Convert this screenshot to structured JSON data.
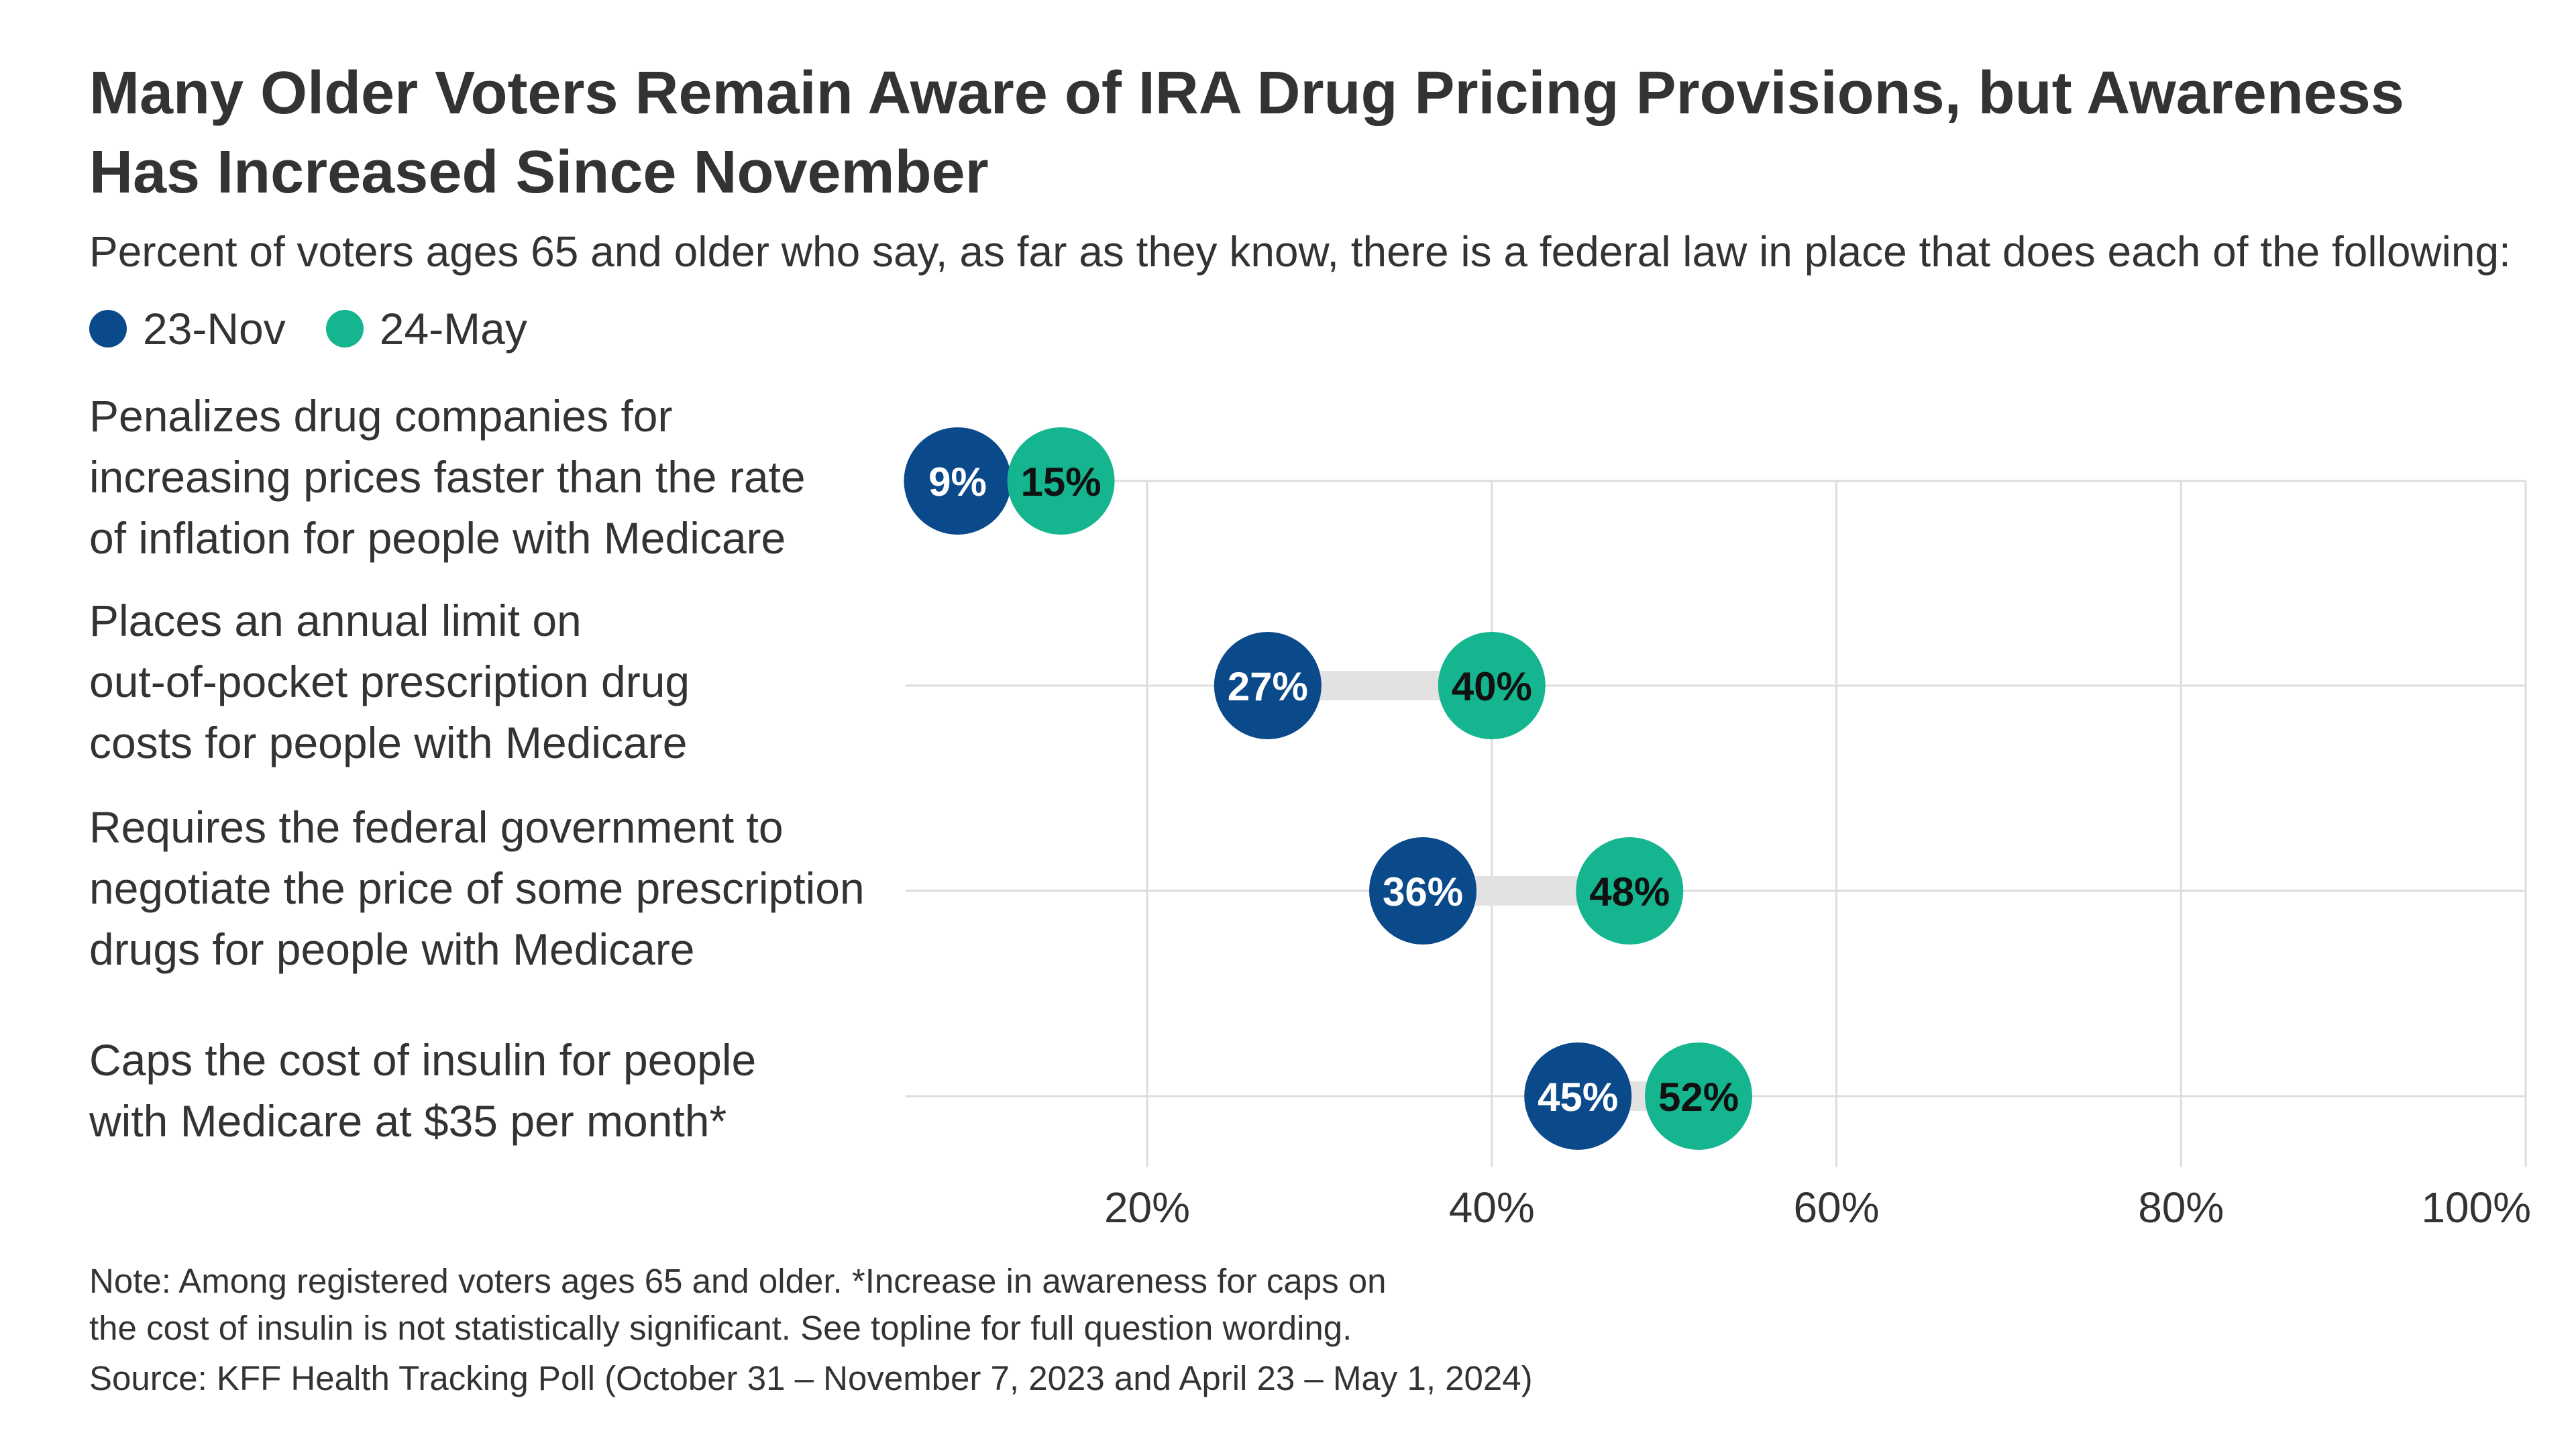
{
  "chart_data": {
    "type": "dumbbell",
    "title": "Many Older Voters Remain Aware of IRA Drug Pricing Provisions, but Awareness Has Increased Since November",
    "subtitle": "Percent of voters ages 65 and older who say, as far as they know, there is a federal law in place that does each of the following:",
    "series": [
      {
        "name": "23-Nov",
        "color": "#0b4a8a",
        "values": [
          9,
          27,
          36,
          45
        ],
        "labels": [
          "9%",
          "27%",
          "36%",
          "45%"
        ]
      },
      {
        "name": "24-May",
        "color": "#14b58f",
        "values": [
          15,
          40,
          48,
          52
        ],
        "labels": [
          "15%",
          "40%",
          "48%",
          "52%"
        ]
      }
    ],
    "categories": [
      [
        "Penalizes drug companies for",
        "increasing prices faster than the rate",
        "of inflation for people with Medicare"
      ],
      [
        "Places an annual limit on",
        "out-of-pocket prescription drug",
        "costs for people with Medicare"
      ],
      [
        "Requires the federal government to",
        "negotiate the price of some prescription",
        "drugs for people with Medicare"
      ],
      [
        "Caps the cost of insulin for people",
        "with Medicare at $35 per month*"
      ]
    ],
    "x_ticks": [
      20,
      40,
      60,
      80,
      100
    ],
    "x_tick_labels": [
      "20%",
      "40%",
      "60%",
      "80%",
      "100%"
    ],
    "xlim": [
      6,
      100
    ],
    "grid": true,
    "legend_position": "top-left",
    "connector_color": "#e2e2e2"
  },
  "notes": {
    "note_line1": "Note: Among registered voters ages 65 and older. *Increase in awareness for caps on",
    "note_line2": "the cost of insulin is not statistically significant. See topline for full question wording.",
    "source": "Source: KFF Health Tracking Poll (October 31 – November 7, 2023 and April 23 – May 1, 2024)"
  }
}
